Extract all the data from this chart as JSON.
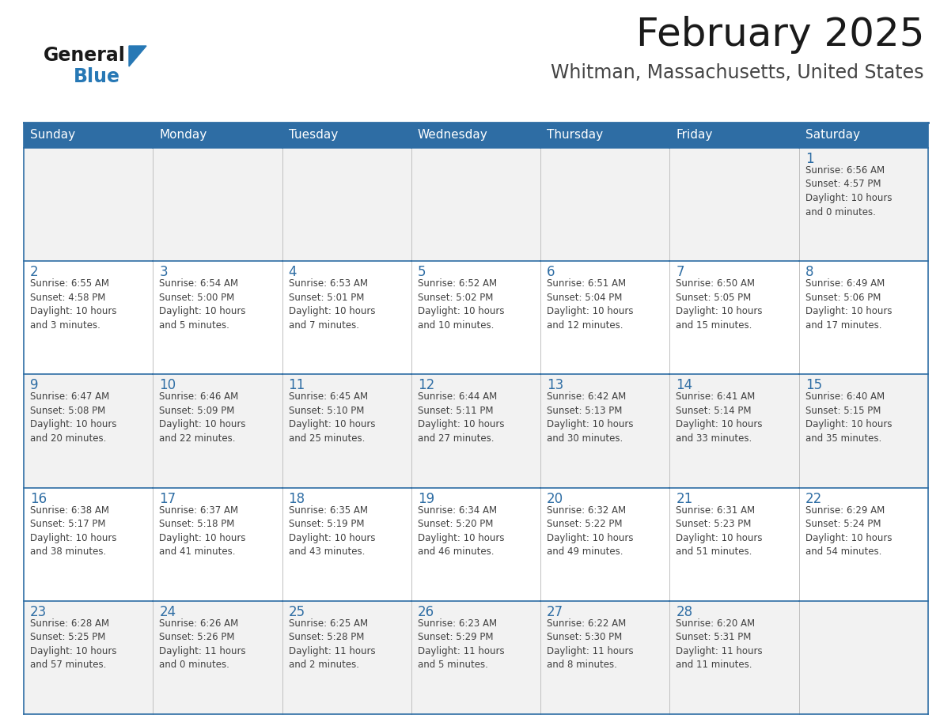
{
  "title": "February 2025",
  "subtitle": "Whitman, Massachusetts, United States",
  "days_of_week": [
    "Sunday",
    "Monday",
    "Tuesday",
    "Wednesday",
    "Thursday",
    "Friday",
    "Saturday"
  ],
  "header_bg_color": "#2E6DA4",
  "header_text_color": "#FFFFFF",
  "cell_bg_odd": "#F2F2F2",
  "cell_bg_even": "#FFFFFF",
  "day_number_color": "#2E6DA4",
  "text_color": "#404040",
  "border_color": "#2E6DA4",
  "border_color_light": "#2E6DA4",
  "title_color": "#1a1a1a",
  "subtitle_color": "#444444",
  "logo_general_color": "#1a1a1a",
  "logo_blue_color": "#2778b5",
  "weeks": [
    [
      {
        "day": null,
        "info": ""
      },
      {
        "day": null,
        "info": ""
      },
      {
        "day": null,
        "info": ""
      },
      {
        "day": null,
        "info": ""
      },
      {
        "day": null,
        "info": ""
      },
      {
        "day": null,
        "info": ""
      },
      {
        "day": 1,
        "info": "Sunrise: 6:56 AM\nSunset: 4:57 PM\nDaylight: 10 hours\nand 0 minutes."
      }
    ],
    [
      {
        "day": 2,
        "info": "Sunrise: 6:55 AM\nSunset: 4:58 PM\nDaylight: 10 hours\nand 3 minutes."
      },
      {
        "day": 3,
        "info": "Sunrise: 6:54 AM\nSunset: 5:00 PM\nDaylight: 10 hours\nand 5 minutes."
      },
      {
        "day": 4,
        "info": "Sunrise: 6:53 AM\nSunset: 5:01 PM\nDaylight: 10 hours\nand 7 minutes."
      },
      {
        "day": 5,
        "info": "Sunrise: 6:52 AM\nSunset: 5:02 PM\nDaylight: 10 hours\nand 10 minutes."
      },
      {
        "day": 6,
        "info": "Sunrise: 6:51 AM\nSunset: 5:04 PM\nDaylight: 10 hours\nand 12 minutes."
      },
      {
        "day": 7,
        "info": "Sunrise: 6:50 AM\nSunset: 5:05 PM\nDaylight: 10 hours\nand 15 minutes."
      },
      {
        "day": 8,
        "info": "Sunrise: 6:49 AM\nSunset: 5:06 PM\nDaylight: 10 hours\nand 17 minutes."
      }
    ],
    [
      {
        "day": 9,
        "info": "Sunrise: 6:47 AM\nSunset: 5:08 PM\nDaylight: 10 hours\nand 20 minutes."
      },
      {
        "day": 10,
        "info": "Sunrise: 6:46 AM\nSunset: 5:09 PM\nDaylight: 10 hours\nand 22 minutes."
      },
      {
        "day": 11,
        "info": "Sunrise: 6:45 AM\nSunset: 5:10 PM\nDaylight: 10 hours\nand 25 minutes."
      },
      {
        "day": 12,
        "info": "Sunrise: 6:44 AM\nSunset: 5:11 PM\nDaylight: 10 hours\nand 27 minutes."
      },
      {
        "day": 13,
        "info": "Sunrise: 6:42 AM\nSunset: 5:13 PM\nDaylight: 10 hours\nand 30 minutes."
      },
      {
        "day": 14,
        "info": "Sunrise: 6:41 AM\nSunset: 5:14 PM\nDaylight: 10 hours\nand 33 minutes."
      },
      {
        "day": 15,
        "info": "Sunrise: 6:40 AM\nSunset: 5:15 PM\nDaylight: 10 hours\nand 35 minutes."
      }
    ],
    [
      {
        "day": 16,
        "info": "Sunrise: 6:38 AM\nSunset: 5:17 PM\nDaylight: 10 hours\nand 38 minutes."
      },
      {
        "day": 17,
        "info": "Sunrise: 6:37 AM\nSunset: 5:18 PM\nDaylight: 10 hours\nand 41 minutes."
      },
      {
        "day": 18,
        "info": "Sunrise: 6:35 AM\nSunset: 5:19 PM\nDaylight: 10 hours\nand 43 minutes."
      },
      {
        "day": 19,
        "info": "Sunrise: 6:34 AM\nSunset: 5:20 PM\nDaylight: 10 hours\nand 46 minutes."
      },
      {
        "day": 20,
        "info": "Sunrise: 6:32 AM\nSunset: 5:22 PM\nDaylight: 10 hours\nand 49 minutes."
      },
      {
        "day": 21,
        "info": "Sunrise: 6:31 AM\nSunset: 5:23 PM\nDaylight: 10 hours\nand 51 minutes."
      },
      {
        "day": 22,
        "info": "Sunrise: 6:29 AM\nSunset: 5:24 PM\nDaylight: 10 hours\nand 54 minutes."
      }
    ],
    [
      {
        "day": 23,
        "info": "Sunrise: 6:28 AM\nSunset: 5:25 PM\nDaylight: 10 hours\nand 57 minutes."
      },
      {
        "day": 24,
        "info": "Sunrise: 6:26 AM\nSunset: 5:26 PM\nDaylight: 11 hours\nand 0 minutes."
      },
      {
        "day": 25,
        "info": "Sunrise: 6:25 AM\nSunset: 5:28 PM\nDaylight: 11 hours\nand 2 minutes."
      },
      {
        "day": 26,
        "info": "Sunrise: 6:23 AM\nSunset: 5:29 PM\nDaylight: 11 hours\nand 5 minutes."
      },
      {
        "day": 27,
        "info": "Sunrise: 6:22 AM\nSunset: 5:30 PM\nDaylight: 11 hours\nand 8 minutes."
      },
      {
        "day": 28,
        "info": "Sunrise: 6:20 AM\nSunset: 5:31 PM\nDaylight: 11 hours\nand 11 minutes."
      },
      {
        "day": null,
        "info": ""
      }
    ]
  ]
}
